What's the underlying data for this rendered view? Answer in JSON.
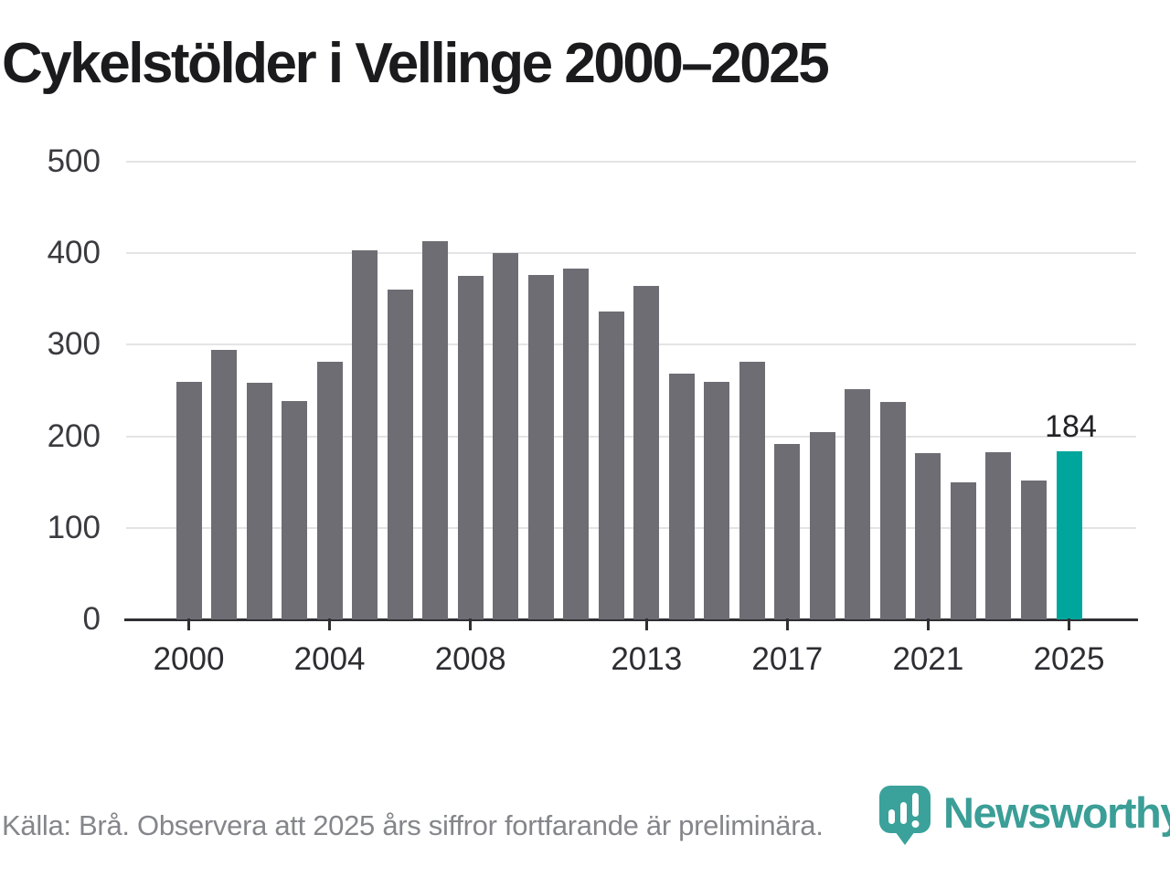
{
  "title": "Cykelstölder i Vellinge 2000–2025",
  "chart_data": {
    "type": "bar",
    "title": "Cykelstölder i Vellinge 2000–2025",
    "categories": [
      2000,
      2001,
      2002,
      2003,
      2004,
      2005,
      2006,
      2007,
      2008,
      2009,
      2010,
      2011,
      2012,
      2013,
      2014,
      2015,
      2016,
      2017,
      2018,
      2019,
      2020,
      2021,
      2022,
      2023,
      2024,
      2025
    ],
    "values": [
      259,
      294,
      258,
      239,
      281,
      403,
      360,
      413,
      375,
      400,
      376,
      383,
      336,
      364,
      268,
      259,
      281,
      192,
      205,
      251,
      238,
      182,
      150,
      183,
      152,
      184
    ],
    "xlabel": "",
    "ylabel": "",
    "ylim": [
      0,
      500
    ],
    "y_ticks": [
      0,
      100,
      200,
      300,
      400,
      500
    ],
    "x_tick_labels": [
      "2000",
      "2004",
      "2008",
      "2013",
      "2017",
      "2021",
      "2025"
    ],
    "x_tick_indices": [
      0,
      4,
      8,
      13,
      17,
      21,
      25
    ],
    "highlight_index": 25,
    "annotation": {
      "text": "184",
      "index": 25
    },
    "bar_color": "#6E6D73",
    "highlight_color": "#00A69C",
    "grid": true,
    "legend_position": "none"
  },
  "footer": {
    "source_text": "Källa: Brå. Observera att 2025 års siffror fortfarande är preliminära.",
    "logo_text": "Newsworthy"
  },
  "colors": {
    "title_text": "#1b1b1d",
    "axis_text": "#3a3a3f",
    "gridline": "#e4e4e6",
    "axis_line": "#2f2f33",
    "source_text": "#85868b",
    "logo_teal": "#3b9e97"
  }
}
